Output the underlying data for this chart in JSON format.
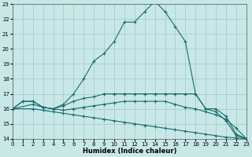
{
  "xlabel": "Humidex (Indice chaleur)",
  "xlim": [
    0,
    23
  ],
  "ylim": [
    14,
    23
  ],
  "yticks": [
    14,
    15,
    16,
    17,
    18,
    19,
    20,
    21,
    22,
    23
  ],
  "xticks": [
    0,
    1,
    2,
    3,
    4,
    5,
    6,
    7,
    8,
    9,
    10,
    11,
    12,
    13,
    14,
    15,
    16,
    17,
    18,
    19,
    20,
    21,
    22,
    23
  ],
  "bg_color": "#c8e8e8",
  "grid_color": "#a8cccc",
  "line_color": "#1a6b6b",
  "line1_x": [
    0,
    1,
    2,
    3,
    4,
    5,
    6,
    7,
    8,
    9,
    10,
    11,
    12,
    13,
    14,
    15,
    16,
    17,
    18,
    19,
    20,
    21,
    22,
    23
  ],
  "line1_y": [
    16.0,
    16.5,
    16.5,
    16.1,
    16.0,
    16.3,
    17.0,
    18.0,
    19.2,
    19.7,
    20.5,
    21.8,
    21.8,
    22.5,
    23.2,
    22.5,
    21.5,
    20.5,
    17.0,
    16.0,
    15.8,
    15.2,
    14.2,
    14.0
  ],
  "line2_x": [
    0,
    1,
    2,
    3,
    4,
    5,
    6,
    7,
    8,
    9,
    10,
    11,
    12,
    13,
    14,
    15,
    16,
    17,
    18,
    19,
    20,
    21,
    22,
    23
  ],
  "line2_y": [
    16.0,
    16.5,
    16.5,
    16.1,
    16.0,
    16.2,
    16.5,
    16.7,
    16.8,
    17.0,
    17.0,
    17.0,
    17.0,
    17.0,
    17.0,
    17.0,
    17.0,
    17.0,
    17.0,
    16.0,
    16.0,
    15.5,
    14.3,
    14.0
  ],
  "line3_x": [
    0,
    2,
    3,
    4,
    5,
    6,
    7,
    8,
    9,
    10,
    11,
    12,
    13,
    14,
    15,
    16,
    17,
    18,
    19,
    20,
    21,
    22,
    23
  ],
  "line3_y": [
    16.0,
    16.3,
    16.1,
    16.0,
    15.9,
    16.0,
    16.1,
    16.2,
    16.3,
    16.4,
    16.5,
    16.5,
    16.5,
    16.5,
    16.5,
    16.3,
    16.1,
    16.0,
    15.8,
    15.6,
    15.3,
    14.7,
    14.0
  ],
  "line4_x": [
    0,
    2,
    3,
    4,
    5,
    6,
    7,
    8,
    9,
    10,
    11,
    12,
    13,
    14,
    15,
    16,
    17,
    18,
    19,
    20,
    21,
    22,
    23
  ],
  "line4_y": [
    16.0,
    16.0,
    15.9,
    15.8,
    15.7,
    15.6,
    15.5,
    15.4,
    15.3,
    15.2,
    15.1,
    15.0,
    14.9,
    14.8,
    14.7,
    14.6,
    14.5,
    14.4,
    14.3,
    14.2,
    14.1,
    14.05,
    14.0
  ]
}
